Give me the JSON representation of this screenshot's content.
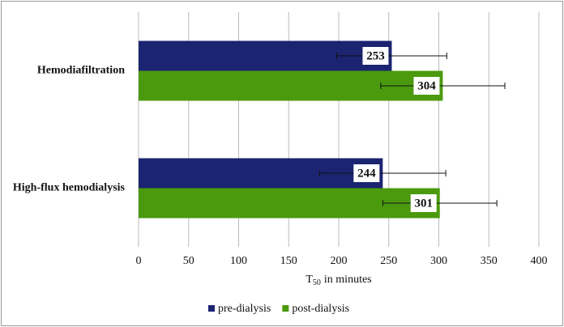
{
  "chart_data": {
    "type": "bar",
    "orientation": "horizontal",
    "categories": [
      "Hemodiafiltration",
      "High-flux hemodialysis"
    ],
    "series": [
      {
        "name": "pre-dialysis",
        "color": "#1b2470",
        "values": [
          253,
          244
        ],
        "errors": [
          55,
          63
        ]
      },
      {
        "name": "post-dialysis",
        "color": "#4b9a0e",
        "values": [
          304,
          301
        ],
        "errors": [
          62,
          57
        ]
      }
    ],
    "x_label": [
      "T",
      "50",
      "in minutes"
    ],
    "xlim": [
      0,
      400
    ],
    "xticks": [
      0,
      50,
      100,
      150,
      200,
      250,
      300,
      350,
      400
    ],
    "grid": true,
    "legend": "bottom"
  }
}
